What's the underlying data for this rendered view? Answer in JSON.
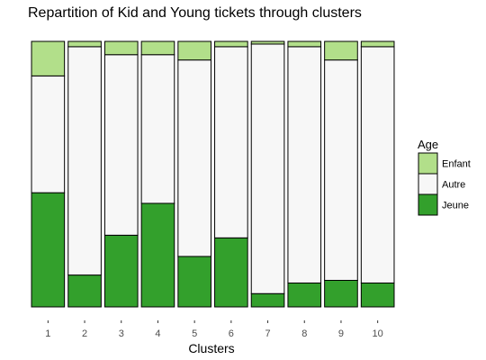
{
  "chart_data": {
    "type": "bar",
    "stacked": true,
    "percent": true,
    "title": "Repartition of Kid and Young tickets through clusters",
    "xlabel": "Clusters",
    "ylabel": "",
    "categories": [
      "1",
      "2",
      "3",
      "4",
      "5",
      "6",
      "7",
      "8",
      "9",
      "10"
    ],
    "series": [
      {
        "name": "Jeune",
        "color": "#33a02c",
        "values": [
          0.43,
          0.12,
          0.27,
          0.39,
          0.19,
          0.26,
          0.05,
          0.09,
          0.1,
          0.09
        ]
      },
      {
        "name": "Autre",
        "color": "#f7f7f7",
        "values": [
          0.44,
          0.86,
          0.68,
          0.56,
          0.74,
          0.72,
          0.94,
          0.89,
          0.83,
          0.89
        ]
      },
      {
        "name": "Enfant",
        "color": "#b2df8a",
        "values": [
          0.13,
          0.02,
          0.05,
          0.05,
          0.07,
          0.02,
          0.01,
          0.02,
          0.07,
          0.02
        ]
      }
    ],
    "ylim": [
      0,
      1
    ],
    "grid": false,
    "legend": {
      "title": "Age",
      "position": "right",
      "order": [
        "Enfant",
        "Autre",
        "Jeune"
      ]
    }
  }
}
